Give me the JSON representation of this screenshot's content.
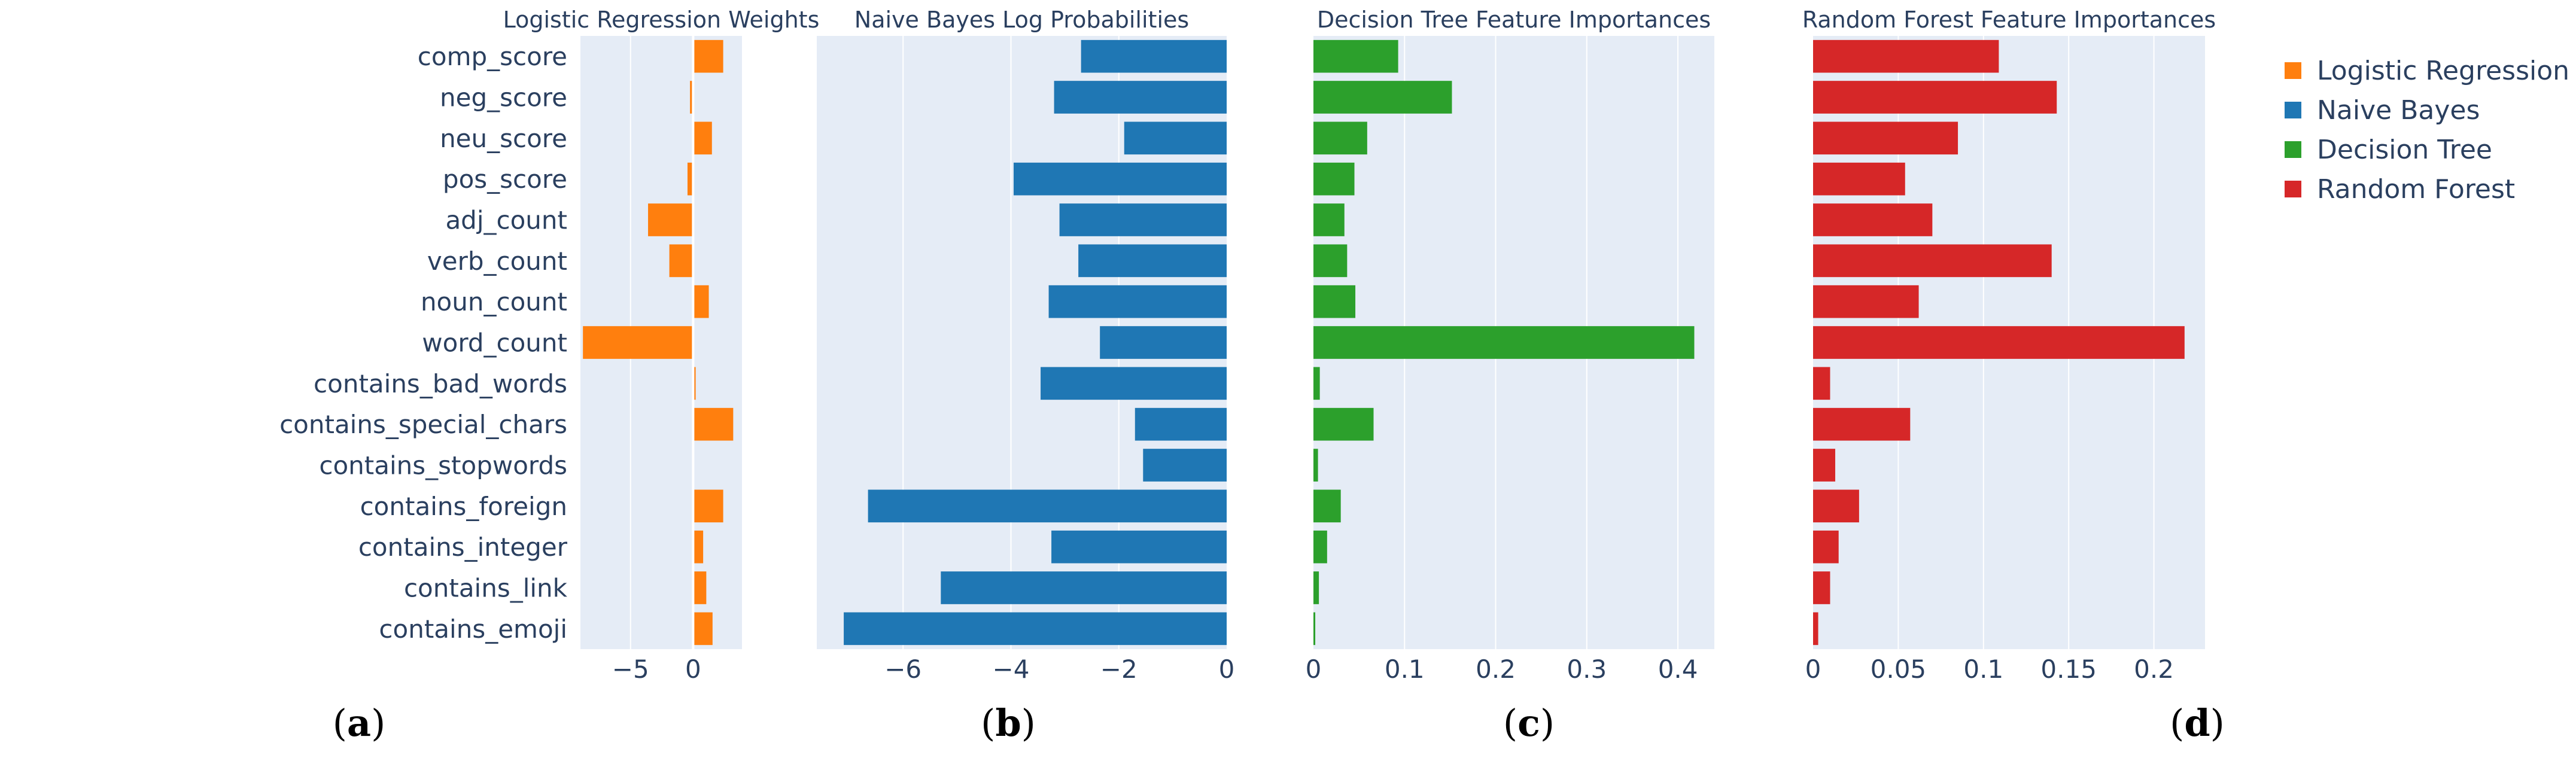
{
  "features": [
    "comp_score",
    "neg_score",
    "neu_score",
    "pos_score",
    "adj_count",
    "verb_count",
    "noun_count",
    "word_count",
    "contains_bad_words",
    "contains_special_chars",
    "contains_stopwords",
    "contains_foreign",
    "contains_integer",
    "contains_link",
    "contains_emoji"
  ],
  "legend": [
    {
      "label": "Logistic Regression",
      "color": "#ff7f0e"
    },
    {
      "label": "Naive Bayes",
      "color": "#1f77b4"
    },
    {
      "label": "Decision Tree",
      "color": "#2ca02c"
    },
    {
      "label": "Random Forest",
      "color": "#d62728"
    }
  ],
  "chart_data": [
    {
      "type": "bar",
      "orientation": "horizontal",
      "title": "Logistic Regression Weights",
      "subfigure": "a",
      "series": [
        {
          "name": "Logistic Regression",
          "color": "#ff7f0e",
          "values": [
            2.4,
            -0.25,
            1.5,
            -0.45,
            -3.6,
            -1.9,
            1.25,
            -8.8,
            0.2,
            3.2,
            0.0,
            2.4,
            0.8,
            1.05,
            1.55
          ]
        }
      ],
      "xlim": [
        -9.0,
        3.9
      ],
      "xticks": [
        -5,
        0
      ],
      "xtick_labels": [
        "−5",
        "0"
      ]
    },
    {
      "type": "bar",
      "orientation": "horizontal",
      "title": "Naive Bayes Log Probabilities",
      "subfigure": "b",
      "series": [
        {
          "name": "Naive Bayes",
          "color": "#1f77b4",
          "values": [
            -2.7,
            -3.2,
            -1.9,
            -3.95,
            -3.1,
            -2.75,
            -3.3,
            -2.35,
            -3.45,
            -1.7,
            -1.55,
            -6.65,
            -3.25,
            -5.3,
            -7.1
          ]
        }
      ],
      "xlim": [
        -7.6,
        0
      ],
      "xticks": [
        -6,
        -4,
        -2,
        0
      ],
      "xtick_labels": [
        "−6",
        "−4",
        "−2",
        "0"
      ]
    },
    {
      "type": "bar",
      "orientation": "horizontal",
      "title": "Decision Tree Feature Importances",
      "subfigure": "c",
      "series": [
        {
          "name": "Decision Tree",
          "color": "#2ca02c",
          "values": [
            0.093,
            0.152,
            0.059,
            0.045,
            0.034,
            0.037,
            0.046,
            0.418,
            0.007,
            0.066,
            0.005,
            0.03,
            0.015,
            0.006,
            0.002
          ]
        }
      ],
      "xlim": [
        0,
        0.44
      ],
      "xticks": [
        0,
        0.1,
        0.2,
        0.3,
        0.4
      ],
      "xtick_labels": [
        "0",
        "0.1",
        "0.2",
        "0.3",
        "0.4"
      ]
    },
    {
      "type": "bar",
      "orientation": "horizontal",
      "title": "Random Forest Feature Importances",
      "subfigure": "d",
      "series": [
        {
          "name": "Random Forest",
          "color": "#d62728",
          "values": [
            0.109,
            0.143,
            0.085,
            0.054,
            0.07,
            0.14,
            0.062,
            0.218,
            0.01,
            0.057,
            0.013,
            0.027,
            0.015,
            0.01,
            0.003
          ]
        }
      ],
      "xlim": [
        0,
        0.23
      ],
      "xticks": [
        0,
        0.05,
        0.1,
        0.15,
        0.2
      ],
      "xtick_labels": [
        "0",
        "0.05",
        "0.1",
        "0.15",
        "0.2"
      ]
    }
  ]
}
